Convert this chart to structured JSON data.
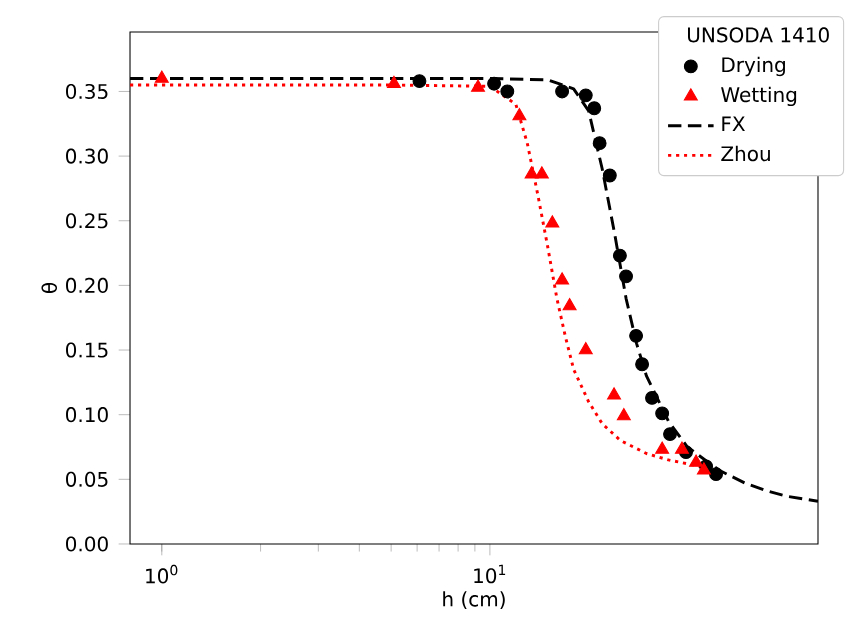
{
  "chart_data": {
    "type": "scatter",
    "xlabel": "h (cm)",
    "ylabel": "θ",
    "log": "x",
    "legend_title": "UNSODA 1410",
    "legend": "top right",
    "xlim": [
      0.8,
      100
    ],
    "xticks": [
      {
        "value": 1,
        "label": "10$^{0}$"
      },
      {
        "value": 10,
        "label": "10$^{1}$"
      }
    ],
    "ylim": [
      0,
      0.396
    ],
    "yticks": [
      {
        "value": 0,
        "label": "0.00"
      },
      {
        "value": 0.05,
        "label": "0.05"
      },
      {
        "value": 0.1,
        "label": "0.10"
      },
      {
        "value": 0.15,
        "label": "0.15"
      },
      {
        "value": 0.2,
        "label": "0.20"
      },
      {
        "value": 0.25,
        "label": "0.25"
      },
      {
        "value": 0.3,
        "label": "0.30"
      },
      {
        "value": 0.35,
        "label": "0.35"
      }
    ],
    "series": [
      {
        "name": "Drying",
        "color": "#000000",
        "marker": "circle",
        "x": [
          6.1,
          10.3,
          11.3,
          16.6,
          19.6,
          20.8,
          21.6,
          23.2,
          24.9,
          26.0,
          27.9,
          29.1,
          31.2,
          33.5,
          35.4,
          39.6,
          45.6,
          48.9
        ],
        "values": [
          0.358,
          0.356,
          0.35,
          0.35,
          0.347,
          0.337,
          0.31,
          0.285,
          0.223,
          0.207,
          0.161,
          0.139,
          0.113,
          0.101,
          0.085,
          0.071,
          0.06,
          0.054
        ]
      },
      {
        "name": "Wetting",
        "color": "#ff0000",
        "marker": "triangle",
        "x": [
          1.0,
          5.1,
          9.2,
          12.3,
          13.4,
          14.4,
          15.5,
          16.6,
          17.5,
          19.6,
          23.9,
          25.6,
          33.5,
          38.5,
          42.5,
          44.9
        ],
        "values": [
          0.36,
          0.356,
          0.353,
          0.331,
          0.286,
          0.286,
          0.248,
          0.204,
          0.184,
          0.15,
          0.115,
          0.099,
          0.073,
          0.073,
          0.063,
          0.057
        ]
      },
      {
        "name": "FX",
        "type": "line",
        "color": "#000000",
        "line_style": "dashed",
        "x": [
          0.8,
          5,
          10,
          15,
          18,
          20,
          22,
          24,
          26,
          28,
          30,
          35,
          40,
          50,
          60,
          70,
          80,
          100
        ],
        "values": [
          0.36,
          0.36,
          0.36,
          0.359,
          0.352,
          0.335,
          0.29,
          0.24,
          0.19,
          0.155,
          0.13,
          0.095,
          0.075,
          0.057,
          0.047,
          0.041,
          0.037,
          0.033
        ]
      },
      {
        "name": "Zhou",
        "type": "line",
        "color": "#ff0000",
        "line_style": "dotted",
        "x": [
          0.8,
          5,
          10,
          12,
          13,
          14,
          15,
          16,
          17,
          18,
          20,
          22,
          25,
          30,
          35,
          40,
          46
        ],
        "values": [
          0.355,
          0.355,
          0.354,
          0.34,
          0.31,
          0.27,
          0.23,
          0.19,
          0.16,
          0.135,
          0.11,
          0.093,
          0.08,
          0.07,
          0.065,
          0.062,
          0.059
        ]
      }
    ]
  }
}
